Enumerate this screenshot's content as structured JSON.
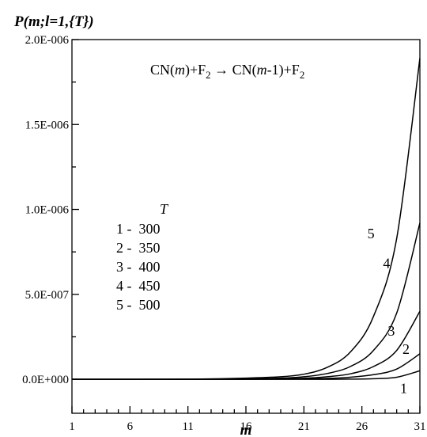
{
  "chart_data": {
    "type": "line",
    "y_title": "P(m;l=1,{T})",
    "xlabel": "m",
    "reaction": "CN(m)+F2 → CN(m-1)+F2",
    "xlim": [
      1,
      31
    ],
    "ylim": [
      -2e-07,
      2e-06
    ],
    "x_ticks": [
      1,
      6,
      11,
      16,
      21,
      26,
      31
    ],
    "x_tick_labels": [
      "1",
      "6",
      "11",
      "16",
      "21",
      "26",
      "31"
    ],
    "y_ticks": [
      0,
      5e-07,
      1e-06,
      1.5e-06,
      2e-06
    ],
    "y_tick_labels": [
      "0.0E+000",
      "5.0E-007",
      "1.0E-006",
      "1.5E-006",
      "2.0E-006"
    ],
    "legend": {
      "title": "T",
      "entries": [
        {
          "label": "1 -  300"
        },
        {
          "label": "2 -  350"
        },
        {
          "label": "3 -  400"
        },
        {
          "label": "4 -  450"
        },
        {
          "label": "5 -  500"
        }
      ]
    },
    "x": [
      1,
      11,
      16,
      19,
      21,
      23,
      25,
      27,
      29,
      31
    ],
    "series": [
      {
        "name": "1",
        "values": [
          0,
          0,
          0,
          0,
          0,
          0,
          1e-09,
          3e-09,
          1.2e-08,
          5e-08
        ]
      },
      {
        "name": "2",
        "values": [
          0,
          0,
          0,
          1e-09,
          2e-09,
          5e-09,
          1.2e-08,
          2.7e-08,
          6e-08,
          1.5e-07
        ]
      },
      {
        "name": "3",
        "values": [
          0,
          0,
          1e-09,
          3e-09,
          6e-09,
          1.5e-08,
          3.2e-08,
          7.5e-08,
          1.7e-07,
          4e-07
        ]
      },
      {
        "name": "4",
        "values": [
          0,
          0,
          3e-09,
          7e-09,
          1.5e-08,
          3.4e-08,
          7.5e-08,
          1.7e-07,
          3.9e-07,
          9.2e-07
        ]
      },
      {
        "name": "5",
        "values": [
          0,
          1e-09,
          7e-09,
          1.5e-08,
          3e-08,
          7e-08,
          1.6e-07,
          3.7e-07,
          8.3e-07,
          1.89e-06
        ]
      }
    ]
  }
}
